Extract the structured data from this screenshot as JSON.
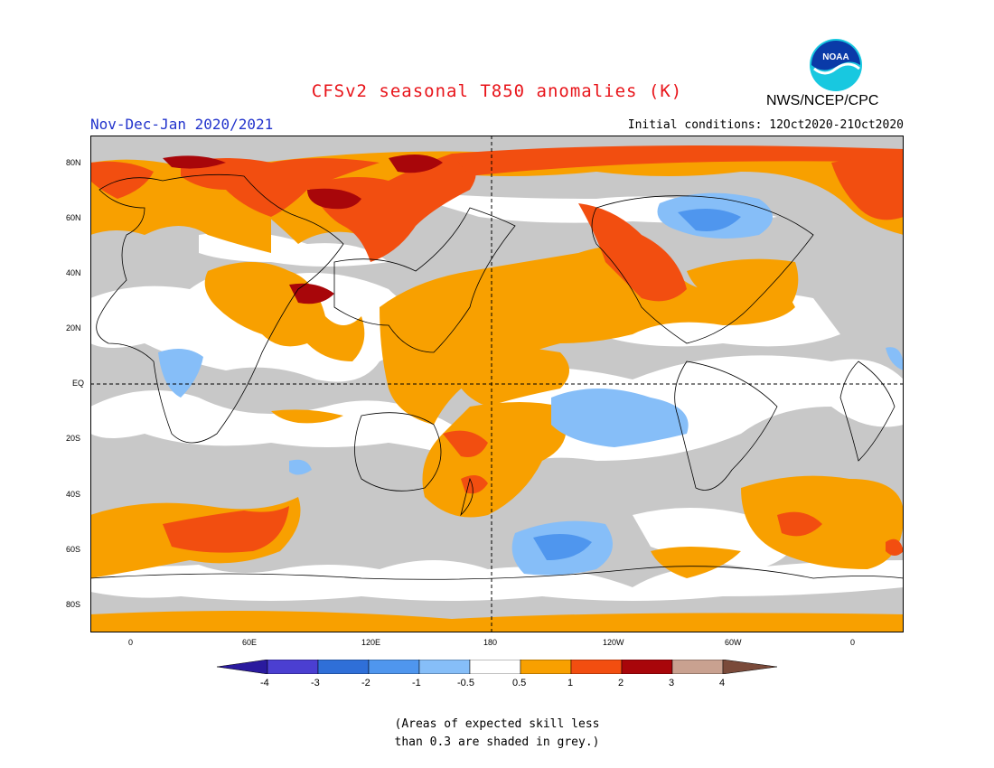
{
  "title": "CFSv2 seasonal T850 anomalies (K)",
  "season": "Nov-Dec-Jan 2020/2021",
  "agency": "NWS/NCEP/CPC",
  "logo_text": "NOAA",
  "initial_conditions": "Initial conditions: 12Oct2020-21Oct2020",
  "lat_labels": [
    "80N",
    "60N",
    "40N",
    "20N",
    "EQ",
    "20S",
    "40S",
    "60S",
    "80S"
  ],
  "lon_labels": [
    "0",
    "60E",
    "120E",
    "180",
    "120W",
    "60W",
    "0"
  ],
  "colorbar": {
    "ticks": [
      "-4",
      "-3",
      "-2",
      "-1",
      "-0.5",
      "0.5",
      "1",
      "2",
      "3",
      "4"
    ],
    "colors": [
      "#2a1a9e",
      "#4b3fd1",
      "#2f6fd8",
      "#4f96ee",
      "#86bef8",
      "#ffffff",
      "#f8a000",
      "#f24e10",
      "#a8060a",
      "#c9a190",
      "#7a4a3a"
    ]
  },
  "colors": {
    "skill_grey": "#c8c8c8",
    "title_red": "#e8141a",
    "season_blue": "#2233cc"
  },
  "note_line1": "(Areas of expected skill less",
  "note_line2": "than 0.3 are shaded in grey.)"
}
